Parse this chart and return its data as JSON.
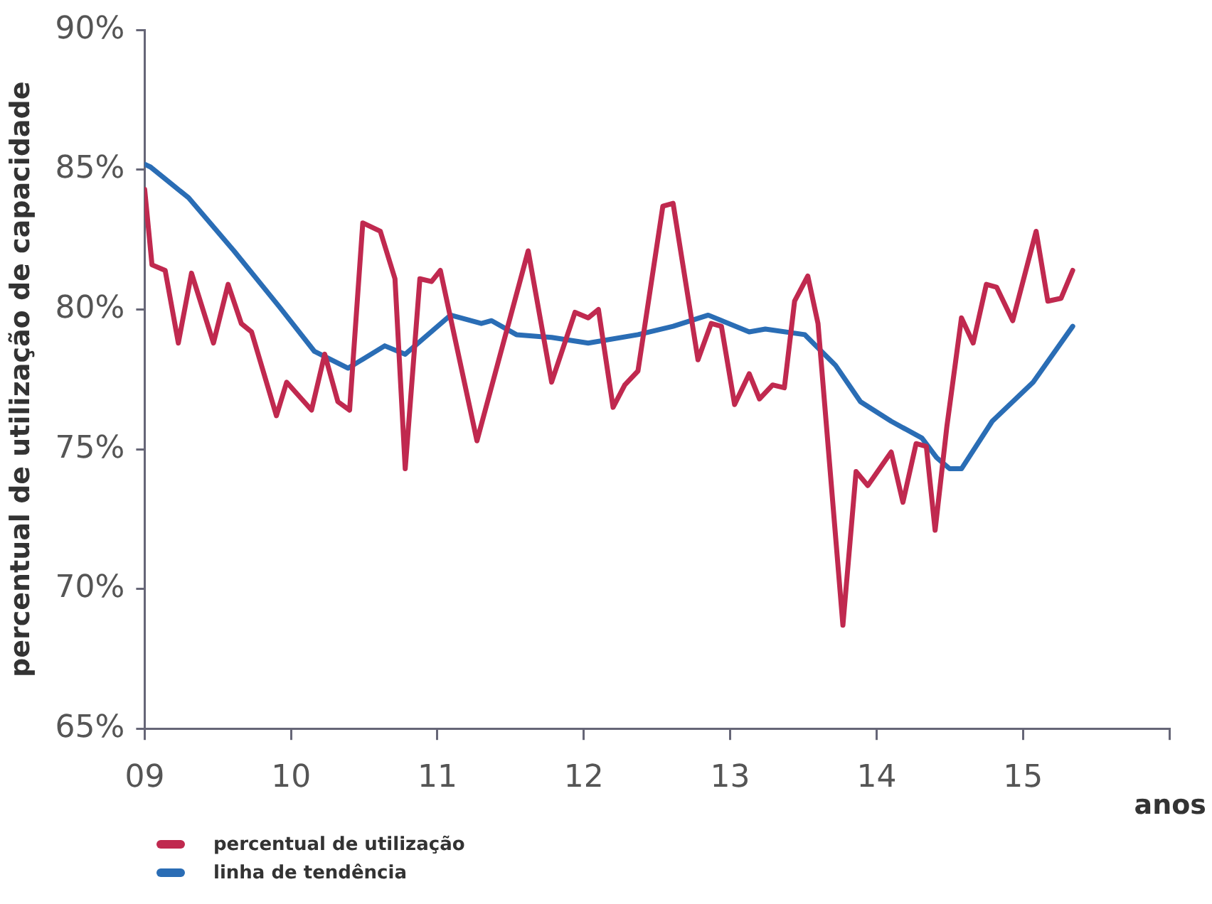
{
  "chart_data": {
    "type": "line",
    "xlabel": "anos",
    "ylabel": "percentual de utilização de capacidade",
    "xlim": [
      2009,
      2016
    ],
    "xticks": [
      {
        "value": 2009,
        "label": "09"
      },
      {
        "value": 2010,
        "label": "10"
      },
      {
        "value": 2011,
        "label": "11"
      },
      {
        "value": 2012,
        "label": "12"
      },
      {
        "value": 2013,
        "label": "13"
      },
      {
        "value": 2014,
        "label": "14"
      },
      {
        "value": 2015,
        "label": "15"
      },
      {
        "value": 2016,
        "label": null
      }
    ],
    "ylim": [
      65,
      90
    ],
    "yticks": [
      {
        "value": 65,
        "label": "65%"
      },
      {
        "value": 70,
        "label": "70%"
      },
      {
        "value": 75,
        "label": "75%"
      },
      {
        "value": 80,
        "label": "80%"
      },
      {
        "value": 85,
        "label": "85%"
      },
      {
        "value": 90,
        "label": "90%"
      }
    ],
    "grid": false,
    "legend": "bottom left",
    "marker": "none",
    "line_style": "solid",
    "series": [
      {
        "name": "percentual de utilização",
        "color": "#c0294f",
        "x": [
          2009.0,
          2009.05,
          2009.14,
          2009.23,
          2009.32,
          2009.47,
          2009.57,
          2009.66,
          2009.73,
          2009.9,
          2009.97,
          2010.14,
          2010.23,
          2010.32,
          2010.4,
          2010.49,
          2010.61,
          2010.71,
          2010.78,
          2010.88,
          2010.96,
          2011.02,
          2011.27,
          2011.62,
          2011.78,
          2011.94,
          2012.03,
          2012.1,
          2012.2,
          2012.28,
          2012.37,
          2012.54,
          2012.61,
          2012.78,
          2012.87,
          2012.94,
          2013.03,
          2013.13,
          2013.2,
          2013.29,
          2013.37,
          2013.44,
          2013.53,
          2013.6,
          2013.77,
          2013.86,
          2013.94,
          2014.1,
          2014.18,
          2014.27,
          2014.34,
          2014.4,
          2014.48,
          2014.58,
          2014.66,
          2014.75,
          2014.82,
          2014.93,
          2015.09,
          2015.17,
          2015.26,
          2015.34
        ],
        "values": [
          84.3,
          81.6,
          81.4,
          78.8,
          81.3,
          78.8,
          80.9,
          79.5,
          79.2,
          76.2,
          77.4,
          76.4,
          78.4,
          76.7,
          76.4,
          83.1,
          82.8,
          81.1,
          74.3,
          81.1,
          81.0,
          81.4,
          75.3,
          82.1,
          77.4,
          79.9,
          79.7,
          80.0,
          76.5,
          77.3,
          77.8,
          83.7,
          83.8,
          78.2,
          79.5,
          79.4,
          76.6,
          77.7,
          76.8,
          77.3,
          77.2,
          80.3,
          81.2,
          79.5,
          68.7,
          74.2,
          73.7,
          74.9,
          73.1,
          75.2,
          75.1,
          72.1,
          75.8,
          79.7,
          78.8,
          80.9,
          80.8,
          79.6,
          82.8,
          80.3,
          80.4,
          81.4
        ]
      },
      {
        "name": "linha de tendência",
        "color": "#2a6db5",
        "x": [
          2009.0,
          2009.04,
          2009.3,
          2009.61,
          2009.92,
          2010.16,
          2010.39,
          2010.64,
          2010.78,
          2011.09,
          2011.3,
          2011.37,
          2011.54,
          2011.78,
          2012.03,
          2012.37,
          2012.61,
          2012.85,
          2013.13,
          2013.24,
          2013.51,
          2013.72,
          2013.89,
          2014.1,
          2014.31,
          2014.41,
          2014.5,
          2014.58,
          2014.79,
          2015.07,
          2015.34
        ],
        "values": [
          85.2,
          85.1,
          84.0,
          82.1,
          80.1,
          78.5,
          77.9,
          78.7,
          78.4,
          79.8,
          79.5,
          79.6,
          79.1,
          79.0,
          78.8,
          79.1,
          79.4,
          79.8,
          79.2,
          79.3,
          79.1,
          78.0,
          76.7,
          76.0,
          75.4,
          74.7,
          74.3,
          74.3,
          76.0,
          77.4,
          79.4
        ]
      }
    ]
  }
}
